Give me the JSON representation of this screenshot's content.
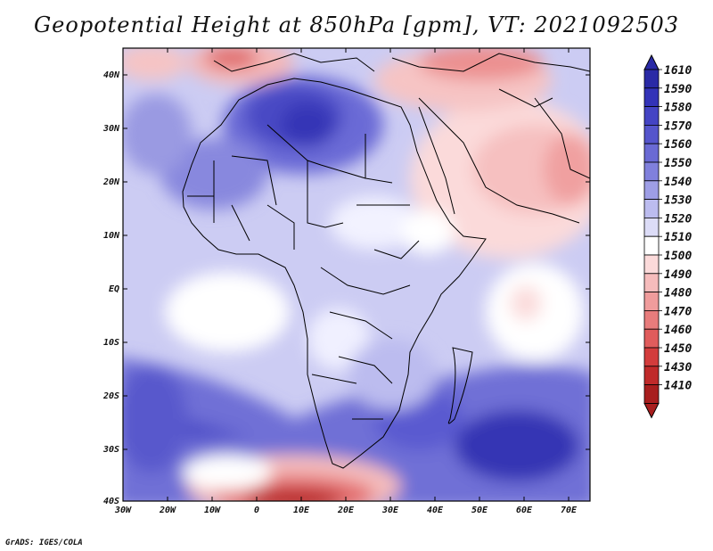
{
  "title": "Geopotential Height at 850hPa [gpm], VT: 2021092503",
  "credit": "GrADS: IGES/COLA",
  "lat_ticks": [
    "40N",
    "30N",
    "20N",
    "10N",
    "EQ",
    "10S",
    "20S",
    "30S",
    "40S"
  ],
  "lon_ticks": [
    "30W",
    "20W",
    "10W",
    "0",
    "10E",
    "20E",
    "30E",
    "40E",
    "50E",
    "60E",
    "70E"
  ],
  "colorbar": {
    "labels": [
      "1610",
      "1590",
      "1580",
      "1570",
      "1560",
      "1550",
      "1540",
      "1530",
      "1520",
      "1510",
      "1500",
      "1490",
      "1480",
      "1470",
      "1460",
      "1450",
      "1430",
      "1410"
    ],
    "colors": [
      "#2a2aa6",
      "#3333b8",
      "#4444c4",
      "#5555cc",
      "#6a6ad4",
      "#8080dc",
      "#9e9ee6",
      "#bcbcef",
      "#dcdcf7",
      "#ffffff",
      "#fbdada",
      "#f6bcbc",
      "#f09c9c",
      "#e87c7c",
      "#e05c5c",
      "#d33c3c",
      "#c02a2a",
      "#a81e1e"
    ]
  },
  "colors": {
    "land_border": "#000000",
    "frame": "#000000"
  }
}
